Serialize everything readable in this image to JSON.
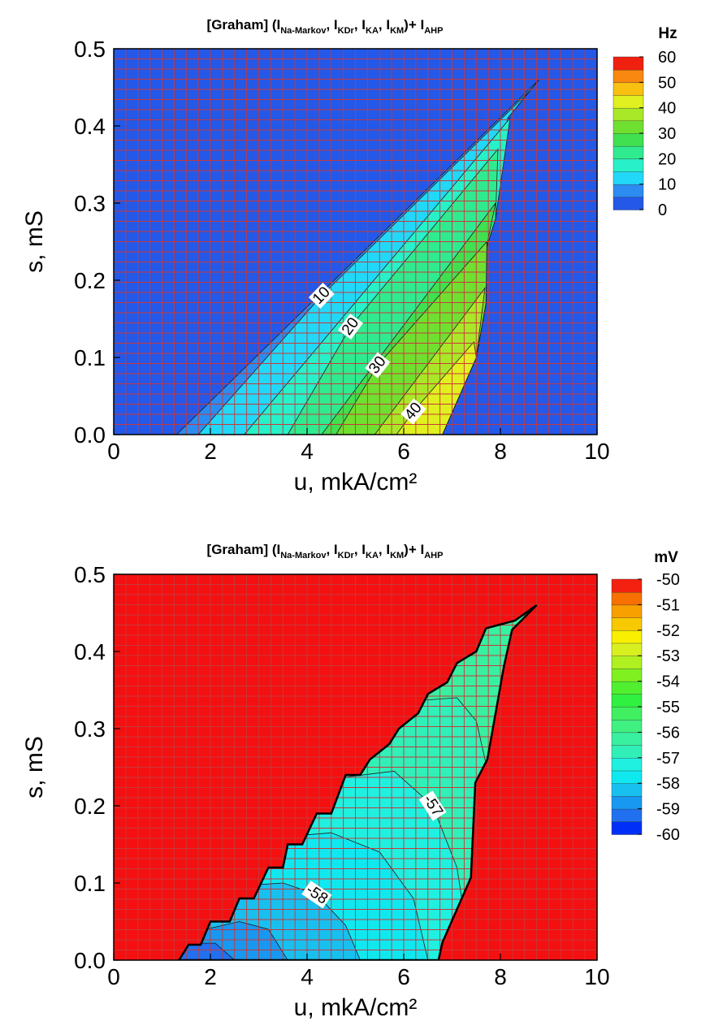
{
  "chart_data": [
    {
      "type": "contour",
      "title": [
        "[Graham] (I",
        "Na-Markov",
        ", I",
        "KDr",
        ", I",
        "KA",
        ", I",
        "KM",
        ")+ I",
        "AHP"
      ],
      "xlabel": "u, mkA/cm²",
      "ylabel": "s, mS",
      "xlim": [
        0,
        10
      ],
      "ylim": [
        0,
        0.5
      ],
      "xticks": [
        0,
        2,
        4,
        6,
        8,
        10
      ],
      "yticks": [
        {
          "value": 0,
          "label": "0.0"
        },
        0.1,
        0.2,
        0.3,
        0.4,
        0.5
      ],
      "background": "#2458e8",
      "mesh": true,
      "mesh_color": "#c8383a",
      "colorbar": {
        "title": "Hz",
        "levels": [
          0,
          5,
          10,
          15,
          20,
          25,
          30,
          35,
          40,
          45,
          50,
          55,
          60
        ],
        "colors": [
          "#2458e8",
          "#2c8cf0",
          "#22d8f8",
          "#28f0c8",
          "#30ea90",
          "#40e050",
          "#70e030",
          "#a8e828",
          "#e0f020",
          "#f8c010",
          "#f88810",
          "#f02010"
        ],
        "ticks": [
          0,
          10,
          20,
          30,
          40,
          50,
          60
        ]
      },
      "contours": [
        {
          "color": "#2c8cf0",
          "points": [
            [
              1.3,
              0
            ],
            [
              8.8,
              0.46
            ],
            [
              8.15,
              0.41
            ],
            [
              7.9,
              0.28
            ],
            [
              7.7,
              0.24
            ],
            [
              7.7,
              0.17
            ],
            [
              7.5,
              0.1
            ],
            [
              6.8,
              0
            ]
          ]
        },
        {
          "color": "#22d8f8",
          "label": "10",
          "points": [
            [
              1.75,
              0
            ],
            [
              4.3,
              0.18
            ],
            [
              8.6,
              0.445
            ],
            [
              8.15,
              0.41
            ],
            [
              7.9,
              0.28
            ],
            [
              7.7,
              0.24
            ],
            [
              7.7,
              0.17
            ],
            [
              7.5,
              0.1
            ],
            [
              6.8,
              0
            ]
          ]
        },
        {
          "color": "#28f0c8",
          "points": [
            [
              2.7,
              0
            ],
            [
              8.2,
              0.41
            ],
            [
              7.9,
              0.28
            ],
            [
              7.7,
              0.24
            ],
            [
              7.7,
              0.17
            ],
            [
              7.5,
              0.1
            ],
            [
              6.8,
              0
            ]
          ]
        },
        {
          "color": "#30ea90",
          "label": "20",
          "points": [
            [
              3.6,
              0
            ],
            [
              4.9,
              0.14
            ],
            [
              7.95,
              0.37
            ],
            [
              7.9,
              0.28
            ],
            [
              7.7,
              0.24
            ],
            [
              7.7,
              0.17
            ],
            [
              7.5,
              0.1
            ],
            [
              6.8,
              0
            ]
          ]
        },
        {
          "color": "#40e050",
          "points": [
            [
              4.3,
              0
            ],
            [
              7.9,
              0.3
            ],
            [
              7.7,
              0.24
            ],
            [
              7.7,
              0.17
            ],
            [
              7.5,
              0.1
            ],
            [
              6.8,
              0
            ]
          ]
        },
        {
          "color": "#70e030",
          "label": "30",
          "points": [
            [
              4.6,
              0
            ],
            [
              5.46,
              0.09
            ],
            [
              7.72,
              0.25
            ],
            [
              7.7,
              0.17
            ],
            [
              7.5,
              0.1
            ],
            [
              6.8,
              0
            ]
          ]
        },
        {
          "color": "#a8e828",
          "points": [
            [
              5.4,
              0
            ],
            [
              7.68,
              0.19
            ],
            [
              7.5,
              0.1
            ],
            [
              6.8,
              0
            ]
          ]
        },
        {
          "color": "#e0f020",
          "label": "40",
          "points": [
            [
              5.85,
              0
            ],
            [
              6.2,
              0.03
            ],
            [
              7.45,
              0.12
            ],
            [
              7.5,
              0.1
            ],
            [
              6.8,
              0
            ]
          ]
        }
      ]
    },
    {
      "type": "contour",
      "title": [
        "[Graham] (I",
        "Na-Markov",
        ", I",
        "KDr",
        ", I",
        "KA",
        ", I",
        "KM",
        ")+ I",
        "AHP"
      ],
      "xlabel": "u, mkA/cm²",
      "ylabel": "s, mS",
      "xlim": [
        0,
        10
      ],
      "ylim": [
        0,
        0.5
      ],
      "xticks": [
        0,
        2,
        4,
        6,
        8,
        10
      ],
      "yticks": [
        {
          "value": 0,
          "label": "0.0"
        },
        0.1,
        0.2,
        0.3,
        0.4,
        0.5
      ],
      "background": "#f41010",
      "mesh": true,
      "mesh_color": "#c8383a",
      "colorbar": {
        "title": "mV",
        "levels": [
          -60,
          -59.5,
          -59,
          -58.5,
          -58,
          -57.5,
          -57,
          -56.5,
          -56,
          -55.5,
          -55,
          -54.5,
          -54,
          -53.5,
          -53,
          -52.5,
          -52,
          -51.5,
          -51,
          -50.5,
          -50
        ],
        "colors": [
          "#0030f8",
          "#2070f0",
          "#1898f0",
          "#18c0f0",
          "#10e8f0",
          "#20f0e0",
          "#30f0b8",
          "#38f0a0",
          "#40f080",
          "#40f060",
          "#30f040",
          "#50f030",
          "#80f020",
          "#b0f020",
          "#d8f020",
          "#f8f000",
          "#f8c800",
          "#f8a000",
          "#f87000",
          "#f42010"
        ],
        "ticks": [
          -50,
          -51,
          -52,
          -53,
          -54,
          -55,
          -56,
          -57,
          -58,
          -59,
          -60
        ]
      },
      "region": {
        "color": "#38f0a0",
        "points": [
          [
            1.35,
            0
          ],
          [
            1.55,
            0.02
          ],
          [
            1.8,
            0.02
          ],
          [
            2.0,
            0.05
          ],
          [
            2.4,
            0.05
          ],
          [
            2.6,
            0.08
          ],
          [
            2.9,
            0.08
          ],
          [
            3.2,
            0.12
          ],
          [
            3.5,
            0.12
          ],
          [
            3.6,
            0.15
          ],
          [
            3.9,
            0.15
          ],
          [
            4.2,
            0.19
          ],
          [
            4.5,
            0.19
          ],
          [
            4.8,
            0.24
          ],
          [
            5.1,
            0.24
          ],
          [
            5.3,
            0.26
          ],
          [
            5.7,
            0.28
          ],
          [
            5.9,
            0.3
          ],
          [
            6.3,
            0.32
          ],
          [
            6.5,
            0.345
          ],
          [
            6.9,
            0.36
          ],
          [
            7.1,
            0.385
          ],
          [
            7.5,
            0.4
          ],
          [
            7.7,
            0.43
          ],
          [
            8.3,
            0.44
          ],
          [
            8.75,
            0.46
          ],
          [
            8.24,
            0.428
          ],
          [
            8.07,
            0.38
          ],
          [
            7.73,
            0.26
          ],
          [
            7.48,
            0.23
          ],
          [
            7.39,
            0.107
          ],
          [
            6.8,
            0.023
          ],
          [
            6.72,
            0
          ]
        ]
      },
      "contours": [
        {
          "color": "#30f0b8",
          "points": [
            [
              0,
              0.34
            ],
            [
              3.5,
              0.34
            ],
            [
              5,
              0.32
            ],
            [
              6,
              0.335
            ],
            [
              7.1,
              0.34
            ],
            [
              7.5,
              0.31
            ],
            [
              7.9,
              0.2
            ],
            [
              8.1,
              0
            ],
            [
              0,
              0
            ]
          ]
        },
        {
          "color": "#20f0e0",
          "label": "-57",
          "points": [
            [
              0,
              0.2
            ],
            [
              3,
              0.2
            ],
            [
              4.5,
              0.235
            ],
            [
              5.8,
              0.245
            ],
            [
              6.6,
              0.2
            ],
            [
              7.1,
              0.12
            ],
            [
              7.4,
              0
            ],
            [
              0,
              0
            ]
          ]
        },
        {
          "color": "#10e8f0",
          "points": [
            [
              0,
              0.13
            ],
            [
              2.5,
              0.13
            ],
            [
              3.5,
              0.16
            ],
            [
              4.5,
              0.165
            ],
            [
              5.5,
              0.14
            ],
            [
              6.2,
              0.08
            ],
            [
              6.5,
              0
            ],
            [
              0,
              0
            ]
          ]
        },
        {
          "color": "#18c0f0",
          "label": "-58",
          "points": [
            [
              0,
              0.08
            ],
            [
              2,
              0.08
            ],
            [
              2.8,
              0.097
            ],
            [
              3.5,
              0.1
            ],
            [
              4.2,
              0.085
            ],
            [
              4.8,
              0.045
            ],
            [
              5.1,
              0
            ],
            [
              0,
              0
            ]
          ]
        },
        {
          "color": "#1898f0",
          "points": [
            [
              0,
              0.04
            ],
            [
              1.9,
              0.04
            ],
            [
              2.6,
              0.05
            ],
            [
              3.2,
              0.04
            ],
            [
              3.6,
              0
            ],
            [
              0,
              0
            ]
          ]
        },
        {
          "color": "#2070f0",
          "points": [
            [
              0,
              0.02
            ],
            [
              1.6,
              0.022
            ],
            [
              2.1,
              0.022
            ],
            [
              2.5,
              0
            ],
            [
              0,
              0
            ]
          ]
        }
      ]
    }
  ]
}
